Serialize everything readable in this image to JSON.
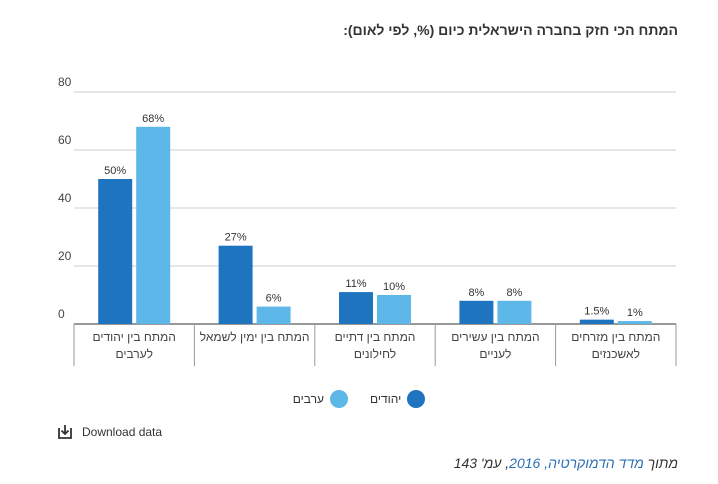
{
  "title": "המתח הכי חזק בחברה הישראלית כיום (%, לפי לאום):",
  "chart_data": {
    "type": "bar",
    "title": "המתח הכי חזק בחברה הישראלית כיום (%, לפי לאום):",
    "categories": [
      [
        "המתח בין יהודים",
        "לערבים"
      ],
      [
        "המתח בין ימין לשמאל"
      ],
      [
        "המתח בין דתיים",
        "לחילונים"
      ],
      [
        "המתח בין עשירים",
        "לעניים"
      ],
      [
        "המתח בין מזרחים",
        "לאשכנזים"
      ]
    ],
    "series": [
      {
        "name": "יהודים",
        "color": "#1f74c0",
        "values": [
          50,
          27,
          11,
          8,
          1.5
        ],
        "labels": [
          "50%",
          "27%",
          "11%",
          "8%",
          "1.5%"
        ]
      },
      {
        "name": "ערבים",
        "color": "#5db7e8",
        "values": [
          68,
          6,
          10,
          8,
          1
        ],
        "labels": [
          "68%",
          "6%",
          "10%",
          "8%",
          "1%"
        ]
      }
    ],
    "ylim": [
      0,
      80
    ],
    "yticks": [
      "0",
      "20",
      "40",
      "60",
      "80"
    ],
    "grid": true,
    "legend_position": "bottom"
  },
  "download_label": "Download data",
  "source": {
    "prefix": "מתוך ",
    "link_text": "מדד הדמוקרטיה, 2016",
    "suffix": ", עמ' 143"
  }
}
